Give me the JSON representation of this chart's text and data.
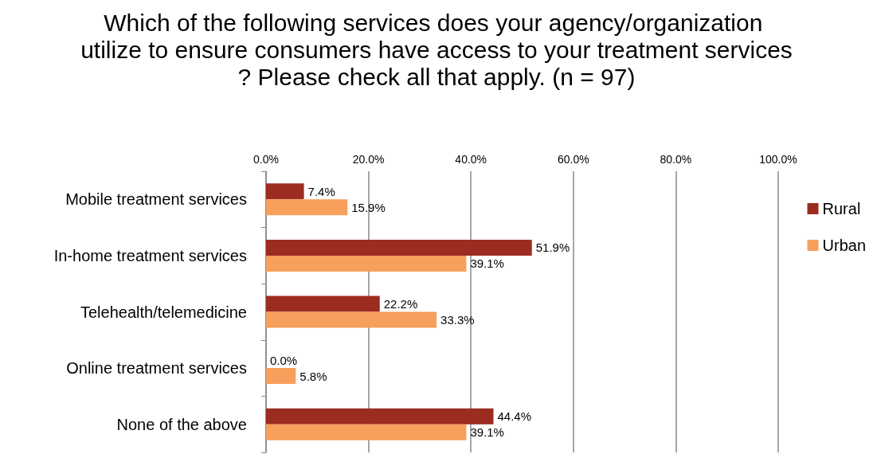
{
  "chart_data": {
    "type": "bar",
    "orientation": "horizontal",
    "title": "Which of the following services does your agency/organization utilize to ensure consumers have access to your treatment services? Please check all that apply. (n = 97)",
    "categories": [
      "Mobile treatment services",
      "In-home treatment services",
      "Telehealth/telemedicine",
      "Online treatment services",
      "None of the above"
    ],
    "series": [
      {
        "name": "Rural",
        "color": "#9c2b20",
        "values": [
          7.4,
          51.9,
          22.2,
          0.0,
          44.4
        ],
        "value_labels": [
          "7.4%",
          "51.9%",
          "22.2%",
          "0.0%",
          "44.4%"
        ]
      },
      {
        "name": "Urban",
        "color": "#f79f5c",
        "values": [
          15.9,
          39.1,
          33.3,
          5.8,
          39.1
        ],
        "value_labels": [
          "15.9%",
          "39.1%",
          "33.3%",
          "5.8%",
          "39.1%"
        ]
      }
    ],
    "xlim": [
      0,
      100
    ],
    "xticks": [
      {
        "value": 0,
        "label": "0.0%"
      },
      {
        "value": 20,
        "label": "20.0%"
      },
      {
        "value": 40,
        "label": "40.0%"
      },
      {
        "value": 60,
        "label": "60.0%"
      },
      {
        "value": 80,
        "label": "80.0%"
      },
      {
        "value": 100,
        "label": "100.0%"
      }
    ],
    "grid": "x",
    "legend": "right"
  }
}
